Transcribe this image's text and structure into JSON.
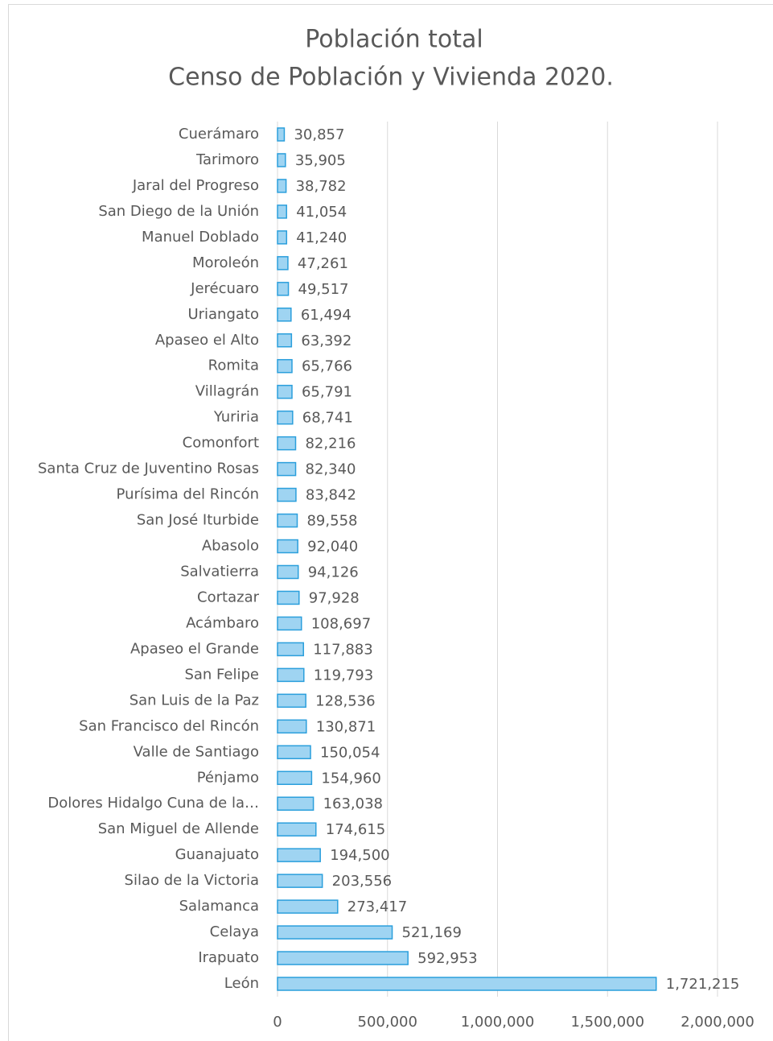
{
  "chart_data": {
    "type": "hbar",
    "title": "Población total",
    "subtitle": "Censo de Población y Vivienda 2020.",
    "categories": [
      "Cuerámaro",
      "Tarimoro",
      "Jaral del Progreso",
      "San Diego de la Unión",
      "Manuel Doblado",
      "Moroleón",
      "Jerécuaro",
      "Uriangato",
      "Apaseo el Alto",
      "Romita",
      "Villagrán",
      "Yuriria",
      "Comonfort",
      "Santa Cruz de Juventino Rosas",
      "Purísima del Rincón",
      "San José Iturbide",
      "Abasolo",
      "Salvatierra",
      "Cortazar",
      "Acámbaro",
      "Apaseo el Grande",
      "San Felipe",
      "San Luis de la Paz",
      "San Francisco del Rincón",
      "Valle de Santiago",
      "Pénjamo",
      "Dolores Hidalgo Cuna de la…",
      "San Miguel de Allende",
      "Guanajuato",
      "Silao de la Victoria",
      "Salamanca",
      "Celaya",
      "Irapuato",
      "León"
    ],
    "values": [
      30857,
      35905,
      38782,
      41054,
      41240,
      47261,
      49517,
      61494,
      63392,
      65766,
      65791,
      68741,
      82216,
      82340,
      83842,
      89558,
      92040,
      94126,
      97928,
      108697,
      117883,
      119793,
      128536,
      130871,
      150054,
      154960,
      163038,
      174615,
      194500,
      203556,
      273417,
      521169,
      592953,
      1721215
    ],
    "value_labels": [
      "30,857",
      "35,905",
      "38,782",
      "41,054",
      "41,240",
      "47,261",
      "49,517",
      "61,494",
      "63,392",
      "65,766",
      "65,791",
      "68,741",
      "82,216",
      "82,340",
      "83,842",
      "89,558",
      "92,040",
      "94,126",
      "97,928",
      "108,697",
      "117,883",
      "119,793",
      "128,536",
      "130,871",
      "150,054",
      "154,960",
      "163,038",
      "174,615",
      "194,500",
      "203,556",
      "273,417",
      "521,169",
      "592,953",
      "1,721,215"
    ],
    "color": "#9fd4f2",
    "edge_color": "#2b9fdc",
    "xlim": [
      0,
      2000000
    ],
    "xticks": [
      0,
      {
        "value": 500000,
        "label": "500,000"
      },
      {
        "value": 1000000,
        "label": "1,000,000"
      },
      {
        "value": 1500000,
        "label": "1,500,000"
      },
      {
        "value": 2000000,
        "label": "2,000,000"
      }
    ],
    "grid": true
  }
}
